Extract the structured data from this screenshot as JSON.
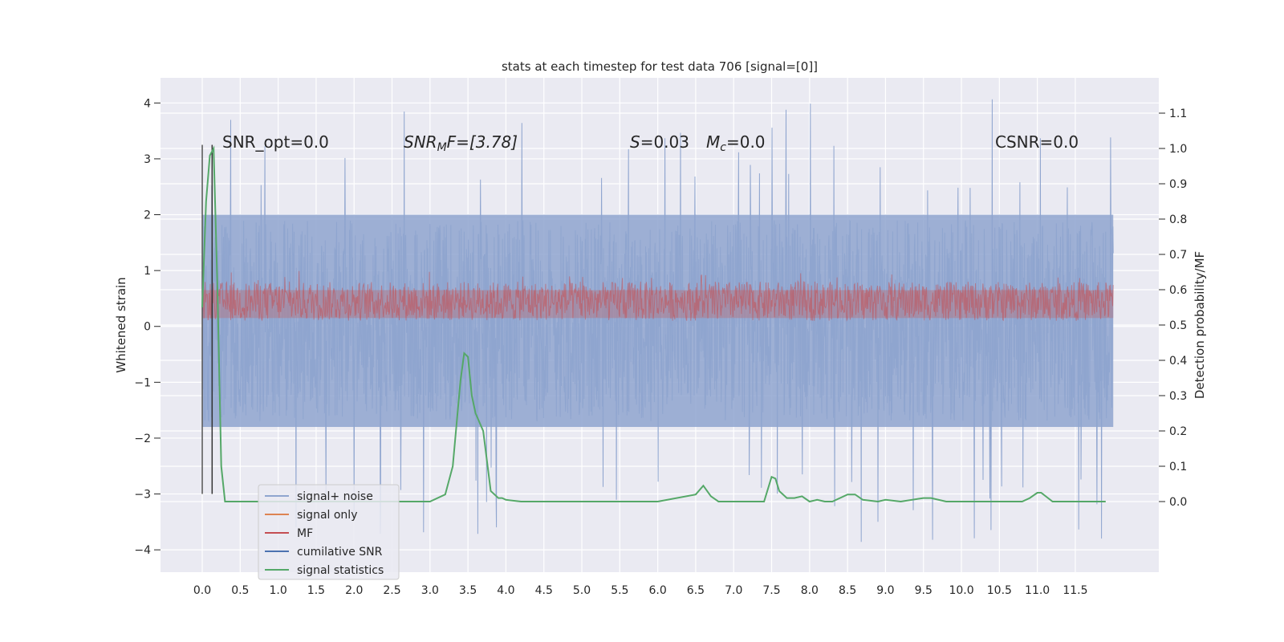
{
  "chart_data": {
    "type": "line",
    "title": "stats at each timestep for test data 706 [signal=[0]]",
    "xlabel": "",
    "ylabel": "Whitened strain",
    "y2label": "Detection probability/MF",
    "xlim": [
      -0.55,
      12.6
    ],
    "ylim": [
      -4.4,
      4.45
    ],
    "y2lim": [
      -0.2,
      1.2
    ],
    "xticks": [
      "0.0",
      "0.5",
      "1.0",
      "1.5",
      "2.0",
      "2.5",
      "3.0",
      "3.5",
      "4.0",
      "4.5",
      "5.0",
      "5.5",
      "6.0",
      "6.5",
      "7.0",
      "7.5",
      "8.0",
      "8.5",
      "9.0",
      "9.5",
      "10.0",
      "10.5",
      "11.0",
      "11.5"
    ],
    "yticks": [
      "4",
      "3",
      "2",
      "1",
      "0",
      "−1",
      "−2",
      "−3",
      "−4"
    ],
    "y2ticks": [
      "1.1",
      "1.0",
      "0.9",
      "0.8",
      "0.7",
      "0.6",
      "0.5",
      "0.4",
      "0.3",
      "0.2",
      "0.1",
      "0.0"
    ],
    "grid": true,
    "legend_position": "lower-left",
    "annotations": {
      "snr_opt": "SNR_opt=0.0",
      "snr_mf_main": "SNR",
      "snr_mf_sub": "M",
      "snr_mf_rest": "F=[3.78]",
      "s_label": "S",
      "s_value": "=0.03",
      "mc_label": "M",
      "mc_sub": "c",
      "mc_value": "=0.0",
      "csnr": "CSNR=0.0"
    },
    "series": [
      {
        "name": "signal+ noise",
        "color": "#8fa5cf",
        "axis": "left",
        "description_range": [
          -3.9,
          4.1
        ],
        "typical_band": [
          -1.8,
          2.0
        ]
      },
      {
        "name": "signal only",
        "color": "#dd8452",
        "axis": "left"
      },
      {
        "name": "MF",
        "color": "#c44e52",
        "axis": "left",
        "typical_band": [
          0.1,
          0.8
        ]
      },
      {
        "name": "cumilative SNR",
        "color": "#4c72b0",
        "axis": "left"
      },
      {
        "name": "signal statistics",
        "color": "#55a868",
        "axis": "right",
        "x": [
          0.0,
          0.05,
          0.1,
          0.15,
          0.2,
          0.25,
          0.3,
          0.5,
          1.0,
          2.0,
          3.0,
          3.2,
          3.3,
          3.4,
          3.45,
          3.5,
          3.55,
          3.6,
          3.7,
          3.8,
          3.9,
          3.95,
          4.0,
          4.2,
          4.5,
          5.0,
          5.5,
          6.0,
          6.5,
          6.6,
          6.7,
          6.8,
          7.0,
          7.4,
          7.5,
          7.55,
          7.6,
          7.7,
          7.8,
          7.9,
          8.0,
          8.1,
          8.2,
          8.3,
          8.5,
          8.6,
          8.7,
          8.9,
          9.0,
          9.2,
          9.5,
          9.6,
          9.8,
          10.0,
          10.5,
          10.8,
          10.9,
          11.0,
          11.05,
          11.2,
          11.5,
          11.9
        ],
        "y": [
          0.55,
          0.85,
          0.98,
          1.0,
          0.6,
          0.1,
          0.0,
          0.0,
          0.0,
          0.0,
          0.0,
          0.02,
          0.1,
          0.34,
          0.42,
          0.41,
          0.3,
          0.25,
          0.2,
          0.03,
          0.01,
          0.01,
          0.005,
          0.0,
          0.0,
          0.0,
          0.0,
          0.0,
          0.02,
          0.045,
          0.015,
          0.0,
          0.0,
          0.0,
          0.07,
          0.065,
          0.03,
          0.01,
          0.01,
          0.015,
          0.0,
          0.005,
          0.0,
          0.0,
          0.02,
          0.02,
          0.005,
          0.0,
          0.005,
          0.0,
          0.01,
          0.01,
          0.0,
          0.0,
          0.0,
          0.0,
          0.01,
          0.025,
          0.025,
          0.0,
          0.0,
          0.0
        ]
      }
    ],
    "vertical_markers": [
      {
        "x": 0.0,
        "color": "#555555"
      },
      {
        "x": 0.13,
        "color": "#333333"
      }
    ]
  }
}
